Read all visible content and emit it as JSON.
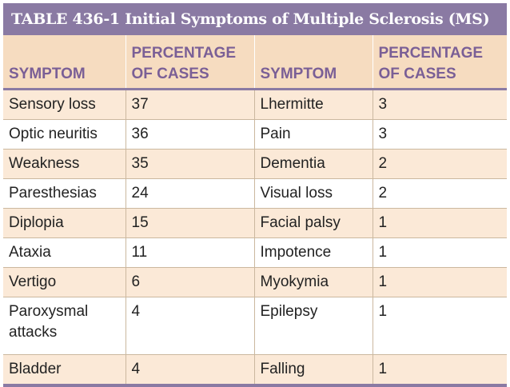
{
  "title": "TABLE 436-1 Initial Symptoms of Multiple Sclerosis (MS)",
  "headers": [
    "SYMPTOM",
    "PERCENTAGE OF CASES",
    "SYMPTOM",
    "PERCENTAGE OF CASES"
  ],
  "header_lines": {
    "symptom": "SYMPTOM",
    "pct_line1": "PERCENTAGE",
    "pct_line2": "OF CASES"
  },
  "rows": [
    {
      "s1": "Sensory loss",
      "p1": "37",
      "s2": "Lhermitte",
      "p2": "3"
    },
    {
      "s1": "Optic neuritis",
      "p1": "36",
      "s2": "Pain",
      "p2": "3"
    },
    {
      "s1": "Weakness",
      "p1": "35",
      "s2": "Dementia",
      "p2": "2"
    },
    {
      "s1": "Paresthesias",
      "p1": "24",
      "s2": "Visual loss",
      "p2": "2"
    },
    {
      "s1": "Diplopia",
      "p1": "15",
      "s2": "Facial palsy",
      "p2": "1"
    },
    {
      "s1": "Ataxia",
      "p1": "11",
      "s2": "Impotence",
      "p2": "1"
    },
    {
      "s1": "Vertigo",
      "p1": "6",
      "s2": "Myokymia",
      "p2": "1"
    },
    {
      "s1_line1": "Paroxysmal",
      "s1_line2": "attacks",
      "p1": "4",
      "s2": "Epilepsy",
      "p2": "1"
    },
    {
      "s1": "Bladder",
      "p1": "4",
      "s2": "Falling",
      "p2": "1"
    }
  ]
}
